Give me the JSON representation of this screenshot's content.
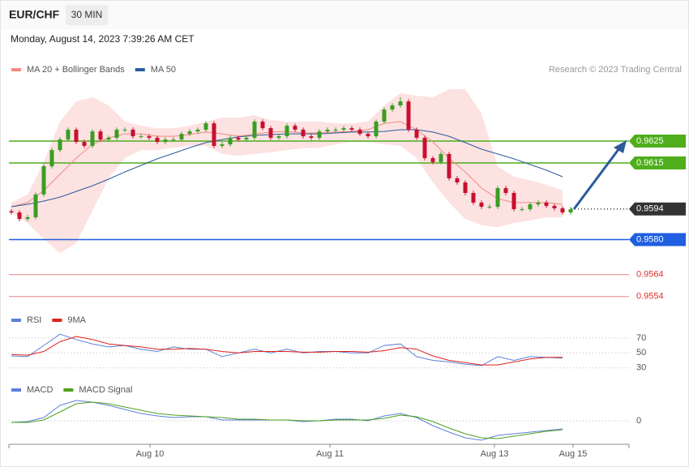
{
  "header": {
    "symbol": "EUR/CHF",
    "interval": "30 MIN",
    "timestamp": "Monday, August 14, 2023 7:39:26 AM CET"
  },
  "chart_data": [
    {
      "type": "candlestick",
      "attribution": "Research © 2023 Trading Central",
      "up_color": "#3a9d23",
      "down_color": "#c8102e",
      "xlim": [
        -0.3,
        76.2
      ],
      "ylim": [
        0.955,
        0.9655
      ],
      "x": [
        0,
        1,
        2,
        3,
        4,
        5,
        6,
        7,
        8,
        9,
        10,
        11,
        12,
        13,
        14,
        15,
        16,
        17,
        18,
        19,
        20,
        21,
        22,
        23,
        24,
        25,
        26,
        27,
        28,
        29,
        30,
        31,
        32,
        33,
        34,
        35,
        36,
        37,
        38,
        39,
        40,
        41,
        42,
        43,
        44,
        45,
        46,
        47,
        48,
        49,
        50,
        51,
        52,
        53,
        54,
        55,
        56,
        57,
        58,
        59,
        60,
        61,
        62,
        63,
        64,
        65,
        66,
        67,
        68,
        69
      ],
      "candles": [
        [
          0.9593,
          0.9594,
          0.95914,
          0.95924
        ],
        [
          0.95924,
          0.95934,
          0.95884,
          0.95894
        ],
        [
          0.95894,
          0.95912,
          0.95884,
          0.95902
        ],
        [
          0.95902,
          0.96016,
          0.95892,
          0.96006
        ],
        [
          0.96006,
          0.96145,
          0.95996,
          0.96135
        ],
        [
          0.96135,
          0.96219,
          0.96125,
          0.96209
        ],
        [
          0.96209,
          0.96267,
          0.96199,
          0.96257
        ],
        [
          0.96257,
          0.96312,
          0.96247,
          0.96302
        ],
        [
          0.96302,
          0.96312,
          0.96236,
          0.96246
        ],
        [
          0.96246,
          0.96256,
          0.96218,
          0.96228
        ],
        [
          0.96228,
          0.96304,
          0.96218,
          0.96294
        ],
        [
          0.96294,
          0.96304,
          0.96247,
          0.96257
        ],
        [
          0.96257,
          0.96275,
          0.96247,
          0.96265
        ],
        [
          0.96265,
          0.96312,
          0.96255,
          0.96302
        ],
        [
          0.96302,
          0.96312,
          0.96292,
          0.96302
        ],
        [
          0.96302,
          0.96312,
          0.96262,
          0.96272
        ],
        [
          0.96272,
          0.96282,
          0.96262,
          0.96272
        ],
        [
          0.96272,
          0.96282,
          0.96255,
          0.96265
        ],
        [
          0.96265,
          0.96275,
          0.96236,
          0.96246
        ],
        [
          0.96246,
          0.96267,
          0.96236,
          0.96257
        ],
        [
          0.96257,
          0.96267,
          0.96247,
          0.96257
        ],
        [
          0.96257,
          0.96293,
          0.96247,
          0.96283
        ],
        [
          0.96283,
          0.96304,
          0.96273,
          0.96294
        ],
        [
          0.96294,
          0.96312,
          0.96284,
          0.96302
        ],
        [
          0.96302,
          0.96341,
          0.96292,
          0.96331
        ],
        [
          0.96331,
          0.96341,
          0.96218,
          0.96228
        ],
        [
          0.96228,
          0.96245,
          0.96218,
          0.96235
        ],
        [
          0.96235,
          0.96275,
          0.96225,
          0.96265
        ],
        [
          0.96265,
          0.96275,
          0.96247,
          0.96257
        ],
        [
          0.96257,
          0.96275,
          0.96247,
          0.96265
        ],
        [
          0.96265,
          0.96349,
          0.96255,
          0.96339
        ],
        [
          0.96339,
          0.96349,
          0.96299,
          0.96309
        ],
        [
          0.96309,
          0.96319,
          0.96255,
          0.96265
        ],
        [
          0.96265,
          0.96282,
          0.96255,
          0.96272
        ],
        [
          0.96272,
          0.9633,
          0.96262,
          0.9632
        ],
        [
          0.9632,
          0.9633,
          0.96292,
          0.96302
        ],
        [
          0.96302,
          0.96312,
          0.96262,
          0.96272
        ],
        [
          0.96272,
          0.96282,
          0.96255,
          0.96265
        ],
        [
          0.96265,
          0.96304,
          0.96255,
          0.96294
        ],
        [
          0.96294,
          0.96312,
          0.96284,
          0.96302
        ],
        [
          0.96302,
          0.96312,
          0.96292,
          0.96302
        ],
        [
          0.96302,
          0.96319,
          0.96292,
          0.96309
        ],
        [
          0.96309,
          0.96319,
          0.96292,
          0.96302
        ],
        [
          0.96302,
          0.96312,
          0.96273,
          0.96283
        ],
        [
          0.96283,
          0.96293,
          0.96262,
          0.96272
        ],
        [
          0.96272,
          0.96349,
          0.96262,
          0.96339
        ],
        [
          0.96339,
          0.96404,
          0.96329,
          0.96394
        ],
        [
          0.96394,
          0.96423,
          0.96384,
          0.96413
        ],
        [
          0.96413,
          0.9645,
          0.96403,
          0.96431
        ],
        [
          0.96431,
          0.96441,
          0.96292,
          0.96302
        ],
        [
          0.96302,
          0.96312,
          0.96255,
          0.96265
        ],
        [
          0.96265,
          0.96275,
          0.96162,
          0.96172
        ],
        [
          0.96172,
          0.96182,
          0.96144,
          0.96154
        ],
        [
          0.96154,
          0.96201,
          0.96144,
          0.96191
        ],
        [
          0.96191,
          0.96201,
          0.9607,
          0.9608
        ],
        [
          0.9608,
          0.9609,
          0.96051,
          0.96061
        ],
        [
          0.96061,
          0.96071,
          0.96003,
          0.96013
        ],
        [
          0.96013,
          0.96023,
          0.95959,
          0.95969
        ],
        [
          0.95969,
          0.95979,
          0.9594,
          0.9595
        ],
        [
          0.9595,
          0.9596,
          0.9594,
          0.9595
        ],
        [
          0.9595,
          0.96045,
          0.9594,
          0.96035
        ],
        [
          0.96035,
          0.96045,
          0.96003,
          0.96013
        ],
        [
          0.96013,
          0.96023,
          0.95929,
          0.95939
        ],
        [
          0.95939,
          0.95949,
          0.95929,
          0.95939
        ],
        [
          0.95939,
          0.95971,
          0.95929,
          0.95961
        ],
        [
          0.95961,
          0.95979,
          0.95951,
          0.95969
        ],
        [
          0.95969,
          0.95979,
          0.95944,
          0.95954
        ],
        [
          0.95954,
          0.95964,
          0.95933,
          0.95943
        ],
        [
          0.95943,
          0.95953,
          0.95914,
          0.95924
        ],
        [
          0.95924,
          0.95949,
          0.95914,
          0.95939
        ]
      ],
      "bands": {
        "color": "#fde2e2",
        "x": [
          0,
          2,
          4,
          6,
          8,
          10,
          12,
          14,
          16,
          18,
          20,
          22,
          24,
          26,
          28,
          30,
          32,
          34,
          36,
          38,
          40,
          42,
          44,
          46,
          48,
          50,
          52,
          54,
          56,
          58,
          60,
          62,
          64,
          66,
          68
        ],
        "upper": [
          0.95969,
          0.96006,
          0.96154,
          0.96339,
          0.96431,
          0.9645,
          0.96413,
          0.96339,
          0.9632,
          0.96309,
          0.96309,
          0.9632,
          0.96339,
          0.96357,
          0.96357,
          0.96369,
          0.96346,
          0.96339,
          0.96339,
          0.96339,
          0.96331,
          0.96331,
          0.96339,
          0.96413,
          0.96469,
          0.96457,
          0.9645,
          0.96487,
          0.96487,
          0.96376,
          0.96135,
          0.96087,
          0.96072,
          0.9605,
          0.96024
        ],
        "lower": [
          0.95924,
          0.95876,
          0.95802,
          0.95739,
          0.95783,
          0.95931,
          0.9608,
          0.96172,
          0.96209,
          0.96209,
          0.9622,
          0.96228,
          0.96228,
          0.96191,
          0.96183,
          0.96191,
          0.96198,
          0.96209,
          0.96217,
          0.9622,
          0.96235,
          0.96246,
          0.96246,
          0.96235,
          0.96228,
          0.96172,
          0.96061,
          0.95969,
          0.95894,
          0.95865,
          0.95857,
          0.95876,
          0.95887,
          0.95902,
          0.95902
        ]
      },
      "series": [
        {
          "name": "MA 20 + Bollinger Bands",
          "color": "#f08a80",
          "x": [
            0,
            2,
            4,
            6,
            8,
            10,
            12,
            14,
            16,
            18,
            20,
            22,
            24,
            26,
            28,
            30,
            32,
            34,
            36,
            38,
            40,
            42,
            44,
            46,
            48,
            50,
            52,
            54,
            56,
            58,
            60,
            62,
            64,
            66,
            68
          ],
          "values": [
            0.9595,
            0.95969,
            0.96024,
            0.96098,
            0.96172,
            0.96235,
            0.96265,
            0.96283,
            0.96283,
            0.96272,
            0.96272,
            0.9628,
            0.96291,
            0.96283,
            0.96272,
            0.96283,
            0.96291,
            0.96294,
            0.96287,
            0.96287,
            0.96291,
            0.96294,
            0.96302,
            0.96331,
            0.96339,
            0.96302,
            0.96246,
            0.96172,
            0.96109,
            0.96035,
            0.95987,
            0.95969,
            0.95969,
            0.95969,
            0.95961
          ]
        },
        {
          "name": "MA 50",
          "color": "#2c5b9c",
          "x": [
            0,
            2,
            4,
            6,
            8,
            10,
            12,
            14,
            16,
            18,
            20,
            22,
            24,
            26,
            28,
            30,
            32,
            34,
            36,
            38,
            40,
            42,
            44,
            46,
            48,
            50,
            52,
            54,
            56,
            58,
            60,
            62,
            64,
            66,
            68
          ],
          "values": [
            0.9595,
            0.95961,
            0.95976,
            0.95994,
            0.9602,
            0.96046,
            0.96076,
            0.96109,
            0.96139,
            0.96169,
            0.96194,
            0.9622,
            0.96243,
            0.96257,
            0.96269,
            0.96276,
            0.9628,
            0.96283,
            0.96283,
            0.96283,
            0.96287,
            0.96291,
            0.96291,
            0.96294,
            0.96302,
            0.96302,
            0.96291,
            0.96272,
            0.96243,
            0.96213,
            0.96191,
            0.96169,
            0.96143,
            0.96117,
            0.96087
          ]
        }
      ],
      "levels": [
        {
          "value": 0.9625,
          "color": "#4fae1c",
          "box": true,
          "line": "solid"
        },
        {
          "value": 0.9615,
          "color": "#4fae1c",
          "box": true,
          "line": "solid"
        },
        {
          "value": 0.9594,
          "color": "#333333",
          "box": true,
          "line": "dotted"
        },
        {
          "value": 0.958,
          "label": "0.9580",
          "color": "#1f5fe0",
          "box": true,
          "line": "solid"
        },
        {
          "value": 0.9564,
          "color": "#e03030",
          "box": false,
          "line": "solid"
        },
        {
          "value": 0.9554,
          "color": "#e03030",
          "box": false,
          "line": "solid"
        }
      ]
    },
    {
      "type": "line",
      "xlim": [
        -0.3,
        76.2
      ],
      "ylim": [
        20,
        85
      ],
      "yticks": [
        30,
        50,
        70
      ],
      "grid": true,
      "series": [
        {
          "name": "RSI",
          "color": "#5b80d8",
          "x": [
            0,
            2,
            4,
            6,
            8,
            10,
            12,
            14,
            16,
            18,
            20,
            22,
            24,
            26,
            28,
            30,
            32,
            34,
            36,
            38,
            40,
            42,
            44,
            46,
            48,
            50,
            52,
            54,
            56,
            58,
            60,
            62,
            64,
            66,
            68
          ],
          "values": [
            46,
            45,
            60,
            75,
            68,
            62,
            58,
            60,
            55,
            52,
            58,
            55,
            55,
            45,
            50,
            55,
            50,
            55,
            50,
            52,
            52,
            50,
            50,
            60,
            62,
            45,
            40,
            38,
            35,
            33,
            45,
            40,
            45,
            44,
            43
          ]
        },
        {
          "name": "9MA",
          "color": "#e0211b",
          "x": [
            0,
            2,
            4,
            6,
            8,
            10,
            12,
            14,
            16,
            18,
            20,
            22,
            24,
            26,
            28,
            30,
            32,
            34,
            36,
            38,
            40,
            42,
            44,
            46,
            48,
            50,
            52,
            54,
            56,
            58,
            60,
            62,
            64,
            66,
            68
          ],
          "values": [
            48,
            47,
            52,
            65,
            72,
            68,
            62,
            60,
            58,
            55,
            55,
            56,
            55,
            52,
            50,
            52,
            52,
            52,
            51,
            51,
            52,
            52,
            51,
            53,
            57,
            55,
            46,
            40,
            37,
            34,
            34,
            38,
            42,
            44,
            44
          ]
        }
      ]
    },
    {
      "type": "line",
      "xlim": [
        -0.3,
        76.2
      ],
      "ylim": [
        -0.0012,
        0.0012
      ],
      "yticks": [
        0
      ],
      "grid": true,
      "xticks": [
        {
          "value": 17.1,
          "label": "Aug 10"
        },
        {
          "value": 39.3,
          "label": "Aug 11"
        },
        {
          "value": 59.6,
          "label": "Aug 13"
        },
        {
          "value": 69.3,
          "label": "Aug 15"
        }
      ],
      "series": [
        {
          "name": "MACD",
          "color": "#5b80d8",
          "x": [
            0,
            2,
            4,
            6,
            8,
            10,
            12,
            14,
            16,
            18,
            20,
            22,
            24,
            26,
            28,
            30,
            32,
            34,
            36,
            38,
            40,
            42,
            44,
            46,
            48,
            50,
            52,
            54,
            56,
            58,
            60,
            62,
            64,
            66,
            68
          ],
          "values": [
            -8e-05,
            -4e-05,
            0.00016,
            0.00076,
            0.001,
            0.00092,
            0.00076,
            0.00056,
            0.00036,
            0.00024,
            0.00016,
            0.0002,
            0.0002,
            4e-05,
            4e-05,
            4e-05,
            4e-05,
            4e-05,
            -4e-05,
            0,
            8e-05,
            8e-05,
            0,
            0.00024,
            0.00036,
            0.00016,
            -0.00024,
            -0.00056,
            -0.00084,
            -0.00096,
            -0.00072,
            -0.00064,
            -0.00056,
            -0.00048,
            -0.0004
          ]
        },
        {
          "name": "MACD Signal",
          "color": "#4fa01e",
          "x": [
            0,
            2,
            4,
            6,
            8,
            10,
            12,
            14,
            16,
            18,
            20,
            22,
            24,
            26,
            28,
            30,
            32,
            34,
            36,
            38,
            40,
            42,
            44,
            46,
            48,
            50,
            52,
            54,
            56,
            58,
            60,
            62,
            64,
            66,
            68
          ],
          "values": [
            -8e-05,
            -8e-05,
            4e-05,
            0.00044,
            0.00084,
            0.00092,
            0.00084,
            0.00068,
            0.00052,
            0.00036,
            0.00028,
            0.00024,
            0.0002,
            0.00016,
            8e-05,
            8e-05,
            4e-05,
            4e-05,
            0,
            0,
            4e-05,
            4e-05,
            4e-05,
            0.00012,
            0.00028,
            0.0002,
            -4e-05,
            -0.00036,
            -0.00064,
            -0.00084,
            -0.00088,
            -0.00076,
            -0.00064,
            -0.00052,
            -0.00044
          ]
        }
      ]
    }
  ]
}
